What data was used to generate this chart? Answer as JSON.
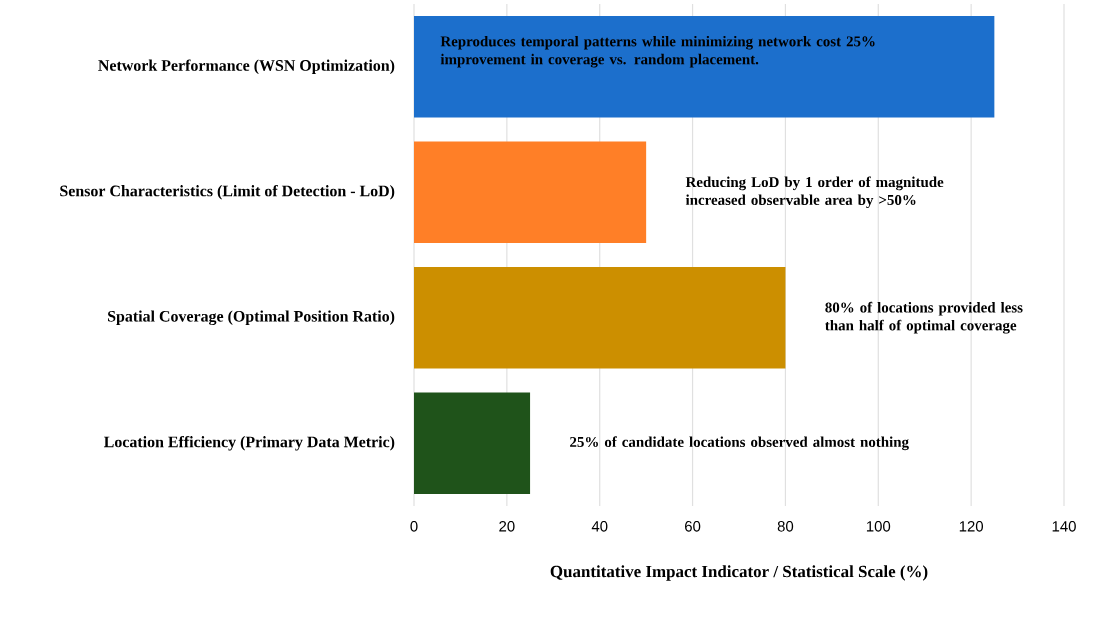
{
  "chart_data": {
    "type": "bar",
    "orientation": "horizontal",
    "categories": [
      "Network Performance (WSN Optimization)",
      "Sensor Characteristics (Limit of Detection - LoD)",
      "Spatial Coverage (Optimal Position Ratio)",
      "Location Efficiency (Primary Data Metric)"
    ],
    "values": [
      125,
      50,
      80,
      25
    ],
    "colors": [
      "#1c6fcc",
      "#ff7f27",
      "#cc8f00",
      "#1f531a"
    ],
    "xlabel": "Quantitative Impact Indicator / Statistical Scale (%)",
    "xlim": [
      0,
      140
    ],
    "xticks": [
      0,
      20,
      40,
      60,
      80,
      100,
      120,
      140
    ],
    "grid": "x",
    "annotations": [
      "Reproduces temporal patterns while minimizing network cost 25% improvement in coverage vs. random placement.",
      "Reducing LoD by 1 order of magnitude increased observable area by >50%",
      "80% of locations provided less than half of optimal coverage",
      "25% of candidate locations observed almost nothing"
    ]
  }
}
